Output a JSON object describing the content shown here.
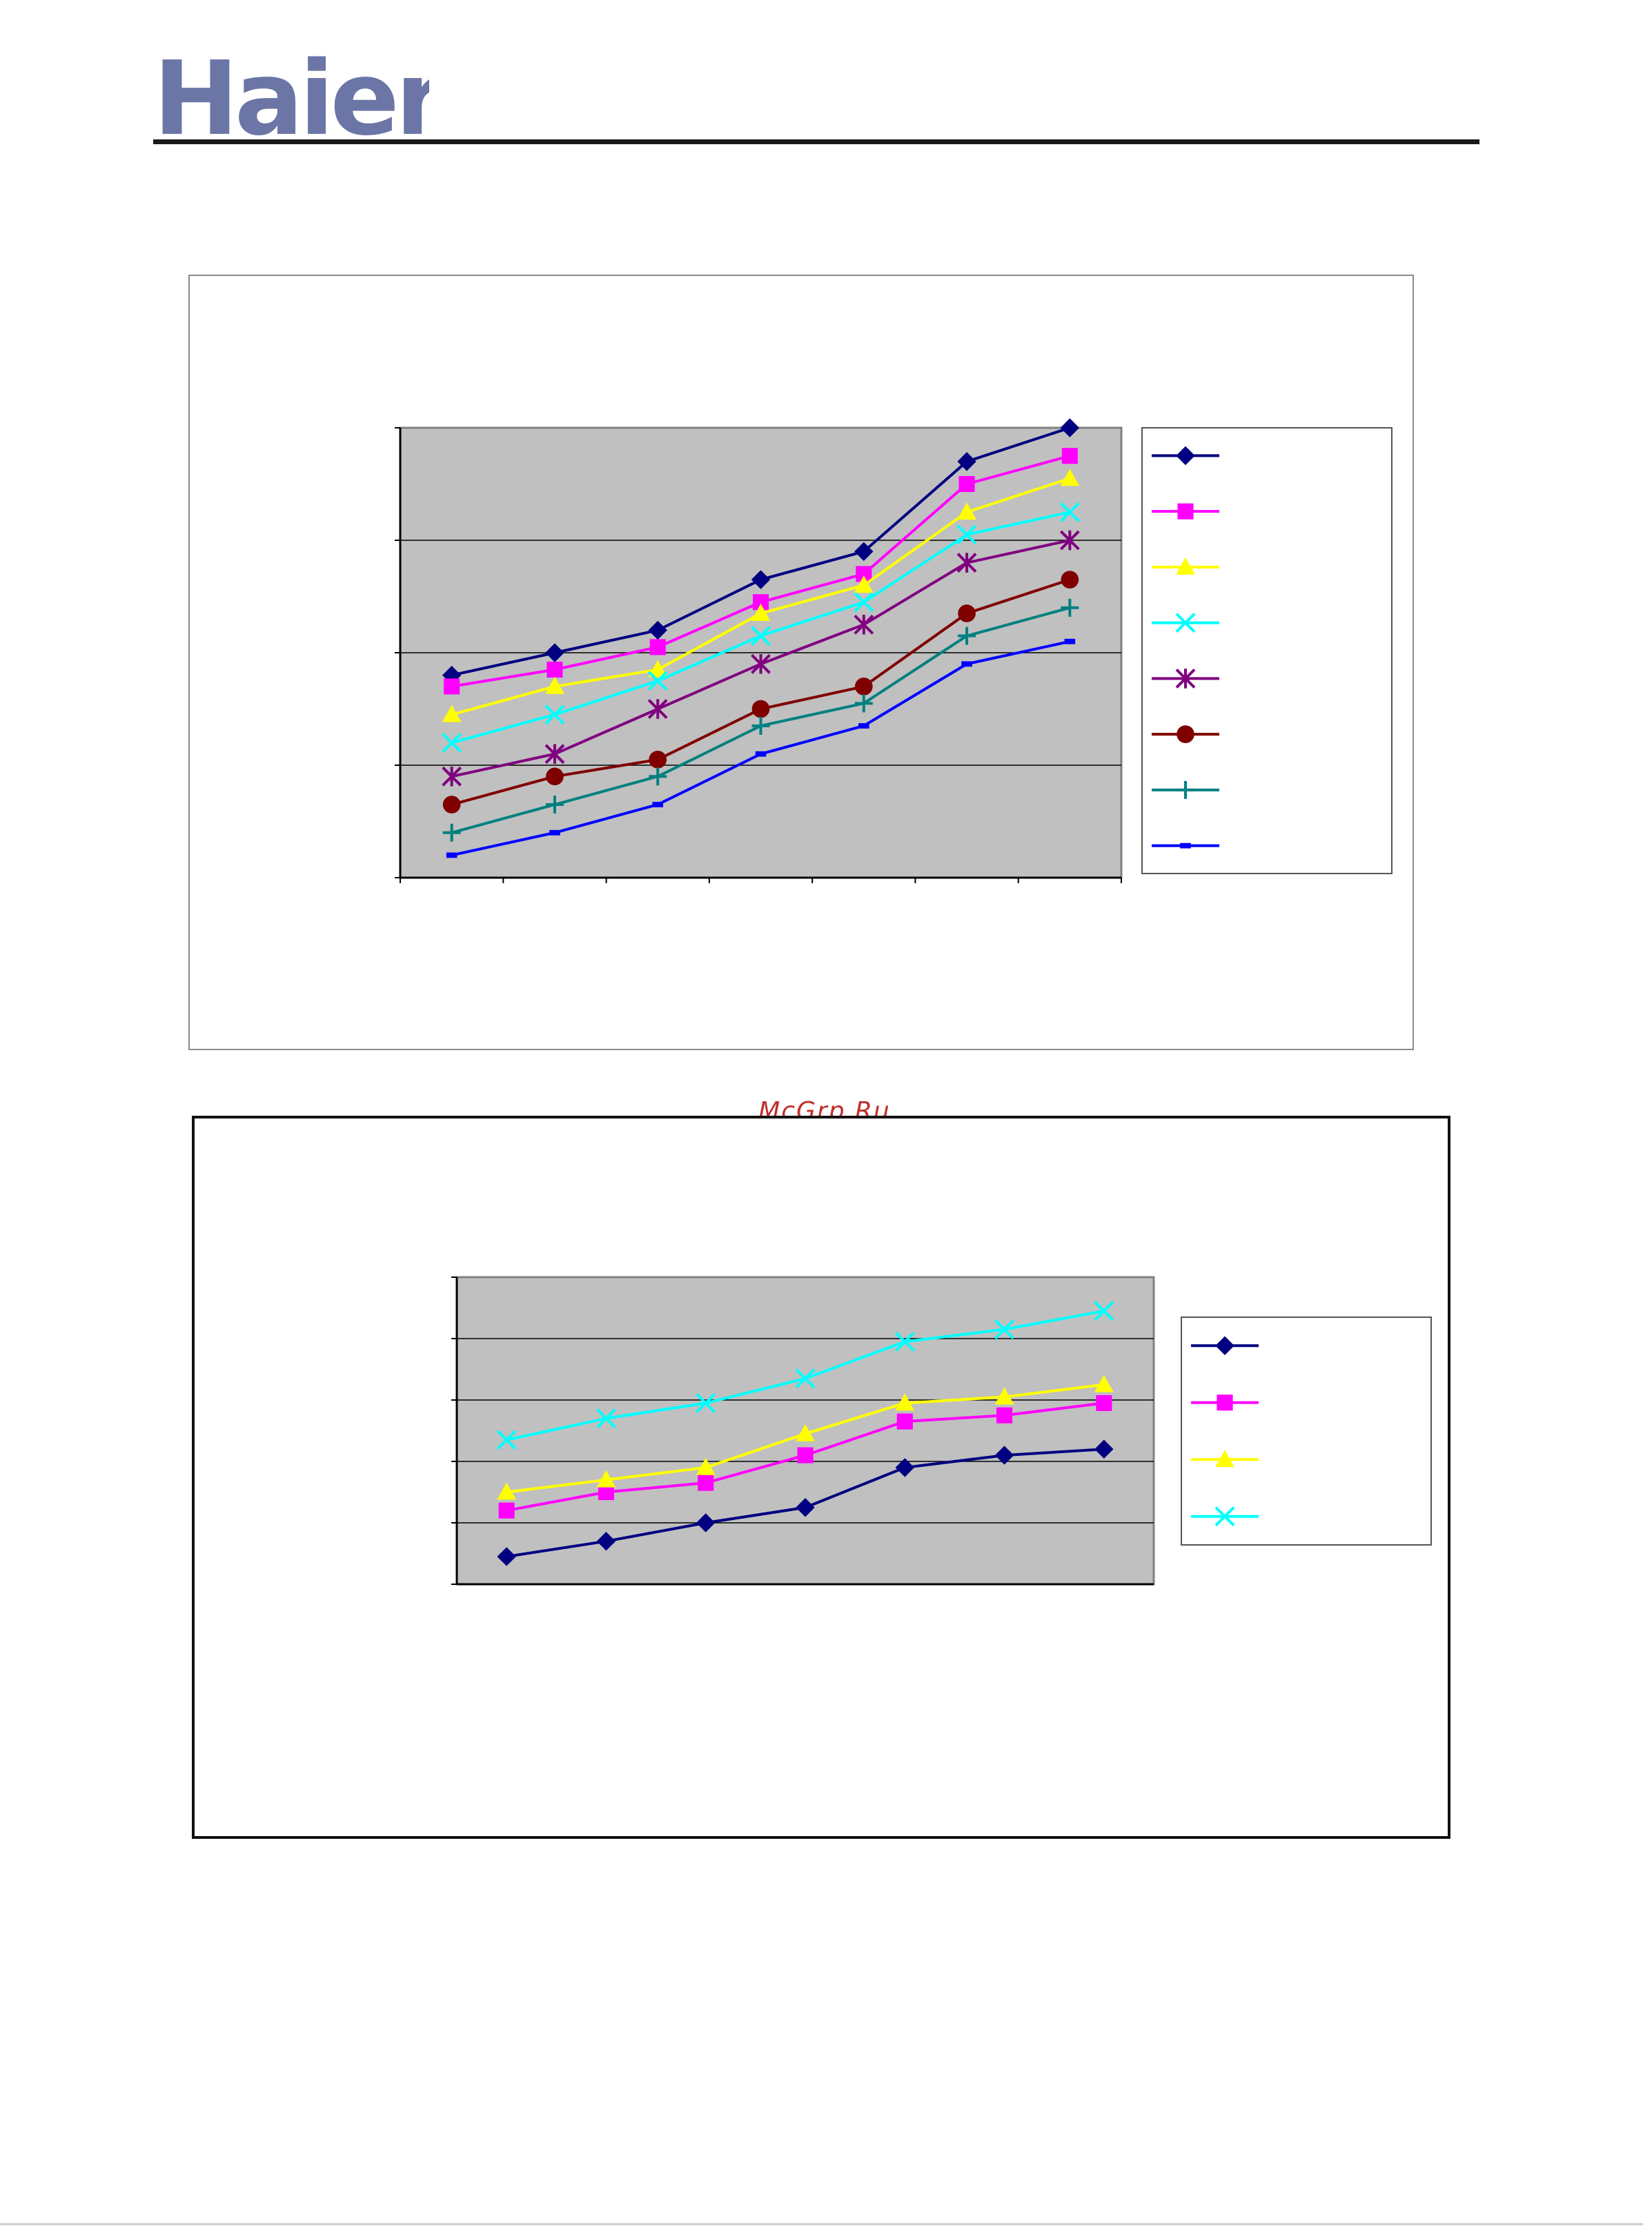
{
  "header": {
    "logo_text": "Haier",
    "logo_color": "#6b75a6"
  },
  "watermark": {
    "text": "McGrp.Ru"
  },
  "chart_data": [
    {
      "type": "line",
      "title": "",
      "xlabel": "",
      "ylabel": "",
      "ylim": [
        0,
        4
      ],
      "grid": true,
      "legend": "right",
      "background": "#c0c0c0",
      "x": [
        0.5,
        1.5,
        2.5,
        3.5,
        4.5,
        5.5,
        6.5
      ],
      "xlim": [
        0,
        7
      ],
      "series": [
        {
          "color": "#000080",
          "marker": "diamond",
          "values": [
            1.8,
            2.0,
            2.2,
            2.65,
            2.9,
            3.7,
            4.0
          ]
        },
        {
          "color": "#ff00ff",
          "marker": "square",
          "values": [
            1.7,
            1.85,
            2.05,
            2.45,
            2.7,
            3.5,
            3.75
          ]
        },
        {
          "color": "#ffff00",
          "marker": "triangle",
          "values": [
            1.45,
            1.7,
            1.85,
            2.35,
            2.6,
            3.25,
            3.55
          ]
        },
        {
          "color": "#00ffff",
          "marker": "x",
          "values": [
            1.2,
            1.45,
            1.75,
            2.15,
            2.45,
            3.05,
            3.25
          ]
        },
        {
          "color": "#800080",
          "marker": "star",
          "values": [
            0.9,
            1.1,
            1.5,
            1.9,
            2.25,
            2.8,
            3.0
          ]
        },
        {
          "color": "#800000",
          "marker": "circle",
          "values": [
            0.65,
            0.9,
            1.05,
            1.5,
            1.7,
            2.35,
            2.65
          ]
        },
        {
          "color": "#008080",
          "marker": "plus",
          "values": [
            0.4,
            0.65,
            0.9,
            1.35,
            1.55,
            2.15,
            2.4
          ]
        },
        {
          "color": "#0000ff",
          "marker": "dash",
          "values": [
            0.2,
            0.4,
            0.65,
            1.1,
            1.35,
            1.9,
            2.1
          ]
        }
      ]
    },
    {
      "type": "line",
      "title": "",
      "xlabel": "",
      "ylabel": "",
      "ylim": [
        0,
        5
      ],
      "grid": true,
      "legend": "right",
      "background": "#c0c0c0",
      "x": [
        0.5,
        1.5,
        2.5,
        3.5,
        4.5,
        5.5,
        6.5
      ],
      "xlim": [
        0,
        7
      ],
      "series": [
        {
          "color": "#000080",
          "marker": "diamond",
          "values": [
            0.45,
            0.7,
            1.0,
            1.25,
            1.9,
            2.1,
            2.2
          ]
        },
        {
          "color": "#ff00ff",
          "marker": "square",
          "values": [
            1.2,
            1.5,
            1.65,
            2.1,
            2.65,
            2.75,
            2.95
          ]
        },
        {
          "color": "#ffff00",
          "marker": "triangle",
          "values": [
            1.5,
            1.7,
            1.9,
            2.45,
            2.95,
            3.05,
            3.25
          ]
        },
        {
          "color": "#00ffff",
          "marker": "x",
          "values": [
            2.35,
            2.7,
            2.95,
            3.35,
            3.95,
            4.15,
            4.45
          ]
        }
      ]
    }
  ]
}
